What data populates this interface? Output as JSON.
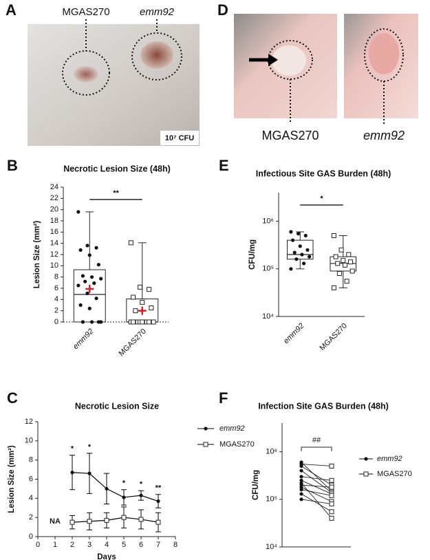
{
  "photos": [
    {
      "panel": "A",
      "labels": [
        "MGAS270",
        "emm92"
      ],
      "note": "10⁷ CFU"
    },
    {
      "panel": "D",
      "labels": [
        "MGAS270",
        "emm92"
      ]
    }
  ],
  "chart_data": [
    {
      "type": "box",
      "panel": "B",
      "title": "Necrotic Lesion Size (48h)",
      "ylabel": "Lesion Size (mm²)",
      "categories": [
        "emm92",
        "MGAS270"
      ],
      "category_styles": [
        "italic",
        "normal"
      ],
      "ylim": [
        0,
        24
      ],
      "yticks": [
        0,
        2,
        4,
        6,
        8,
        10,
        12,
        14,
        16,
        18,
        20,
        22,
        24
      ],
      "zero_line": "dotted",
      "boxes": [
        {
          "min": 0,
          "q1": 0,
          "median": 4.9,
          "q3": 9.3,
          "max": 19.6,
          "mean": 5.9,
          "marker": "circle",
          "points": [
            19.6,
            13.6,
            13.2,
            12.8,
            11.9,
            10.2,
            8.2,
            8.0,
            7.7,
            7.2,
            6.9,
            6.5,
            5.1,
            4.2,
            3.0,
            2.4,
            0,
            0,
            0,
            0
          ]
        },
        {
          "min": 0,
          "q1": 0,
          "median": 0,
          "q3": 4.1,
          "max": 14.1,
          "mean": 2.0,
          "marker": "square",
          "points": [
            14.1,
            6.2,
            5.8,
            4.4,
            3.5,
            2.5,
            2.0,
            0,
            0,
            0,
            0,
            0,
            0,
            0,
            0,
            0
          ]
        }
      ],
      "mean_color": "#d0202a",
      "significance": "**"
    },
    {
      "type": "box",
      "panel": "E",
      "title": "Infectious Site GAS Burden (48h)",
      "ylabel": "CFU/mg",
      "categories": [
        "emm92",
        "MGAS270"
      ],
      "category_styles": [
        "italic",
        "normal"
      ],
      "log_scale": true,
      "ylim": [
        10000,
        4000000
      ],
      "yticks": [
        {
          "value": 10000,
          "label": "10⁴"
        },
        {
          "value": 100000,
          "label": "10⁵"
        },
        {
          "value": 1000000,
          "label": "10⁶"
        }
      ],
      "boxes": [
        {
          "min": 100000,
          "q1": 160000,
          "median": 200000,
          "q3": 400000,
          "max": 600000,
          "marker": "circle",
          "points": [
            600000,
            550000,
            500000,
            400000,
            300000,
            250000,
            220000,
            200000,
            180000,
            160000,
            130000,
            100000
          ]
        },
        {
          "min": 40000,
          "q1": 90000,
          "median": 130000,
          "q3": 180000,
          "max": 500000,
          "marker": "square",
          "points": [
            500000,
            250000,
            200000,
            180000,
            150000,
            140000,
            130000,
            120000,
            90000,
            80000,
            55000,
            40000
          ]
        }
      ],
      "significance": "*"
    },
    {
      "type": "line",
      "panel": "C",
      "title": "Necrotic Lesion Size",
      "ylabel": "Lesion Size (mm²)",
      "xlabel": "Days",
      "x": [
        2,
        3,
        4,
        5,
        6,
        7
      ],
      "xlim": [
        0,
        8
      ],
      "xticks": [
        0,
        1,
        2,
        3,
        4,
        5,
        6,
        7,
        8
      ],
      "ylim": [
        0,
        12
      ],
      "yticks": [
        0,
        2,
        4,
        6,
        8,
        10,
        12
      ],
      "series": [
        {
          "name": "emm92",
          "font_style": "italic",
          "marker": "circle",
          "color": "#000000",
          "values": [
            6.7,
            6.6,
            5.0,
            4.1,
            4.3,
            3.7
          ],
          "errors": [
            1.8,
            2.1,
            1.6,
            0.8,
            0.5,
            0.7
          ]
        },
        {
          "name": "MGAS270",
          "font_style": "normal",
          "marker": "square",
          "color": "#000000",
          "values": [
            1.5,
            1.6,
            1.7,
            2.0,
            1.8,
            1.5
          ],
          "errors": [
            0.7,
            0.9,
            0.8,
            1.1,
            1.0,
            1.0
          ]
        }
      ],
      "annotations": [
        {
          "x": 1,
          "text": "NA"
        },
        {
          "x": 2,
          "text": "*"
        },
        {
          "x": 3,
          "text": "*"
        },
        {
          "x": 5,
          "text": "*"
        },
        {
          "x": 6,
          "text": "*"
        },
        {
          "x": 7,
          "text": "**"
        }
      ]
    },
    {
      "type": "paired",
      "panel": "F",
      "title": "Infection Site GAS Burden (48h)",
      "ylabel": "CFU/mg",
      "log_scale": true,
      "ylim": [
        10000,
        4000000
      ],
      "yticks": [
        {
          "value": 10000,
          "label": "10⁴"
        },
        {
          "value": 100000,
          "label": "10⁵"
        },
        {
          "value": 1000000,
          "label": "10⁶"
        }
      ],
      "series": [
        {
          "name": "emm92",
          "font_style": "italic",
          "marker": "circle",
          "color": "#000000",
          "values": [
            600000,
            550000,
            500000,
            400000,
            300000,
            250000,
            220000,
            200000,
            180000,
            160000,
            130000,
            100000
          ]
        },
        {
          "name": "MGAS270",
          "font_style": "normal",
          "marker": "square",
          "color": "#000000",
          "values": [
            150000,
            500000,
            200000,
            140000,
            250000,
            130000,
            40000,
            180000,
            90000,
            120000,
            55000,
            80000
          ]
        }
      ],
      "significance": "##"
    }
  ]
}
